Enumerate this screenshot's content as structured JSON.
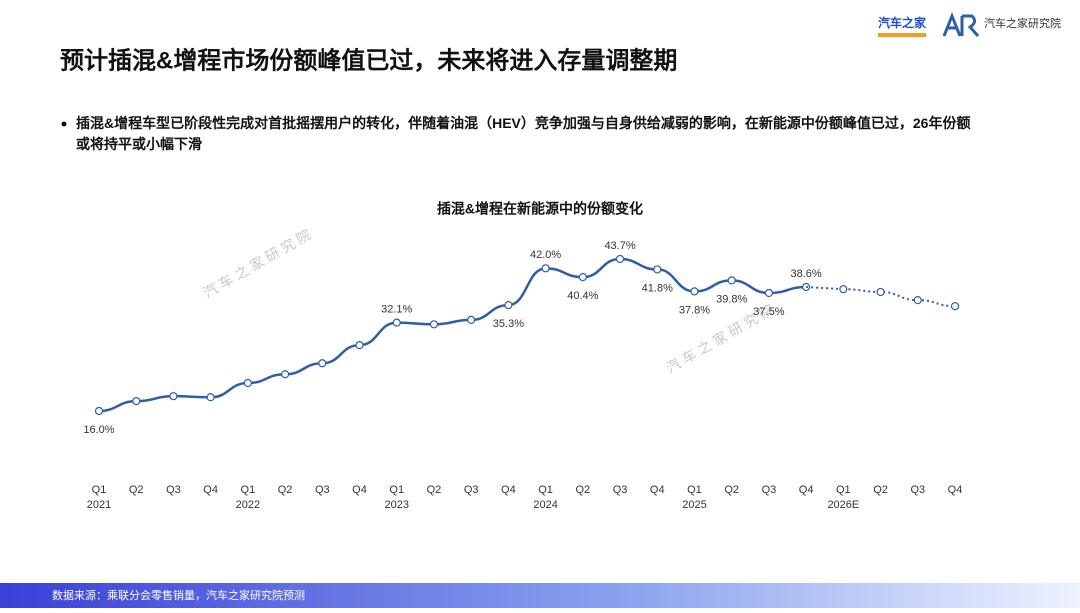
{
  "header": {
    "title": "预计插混&增程市场份额峰值已过，未来将进入存量调整期",
    "logo_brand": "汽车之家",
    "logo_research": "汽车之家研究院"
  },
  "bullet": "插混&增程车型已阶段性完成对首批摇摆用户的转化，伴随着油混（HEV）竞争加强与自身供给减弱的影响，在新能源中份额峰值已过，26年份额或将持平或小幅下滑",
  "watermark": "汽 车 之 家 研 究 院",
  "footer": "数据来源：乘联分会零售销量，汽车之家研究院预测",
  "chart_data": {
    "type": "line",
    "title": "插混&增程在新能源中的份额变化",
    "categories": [
      "Q1",
      "Q2",
      "Q3",
      "Q4",
      "Q1",
      "Q2",
      "Q3",
      "Q4",
      "Q1",
      "Q2",
      "Q3",
      "Q4",
      "Q1",
      "Q2",
      "Q3",
      "Q4",
      "Q1",
      "Q2",
      "Q3",
      "Q4",
      "Q1",
      "Q2",
      "Q3",
      "Q4"
    ],
    "year_labels": [
      "2021",
      null,
      null,
      null,
      "2022",
      null,
      null,
      null,
      "2023",
      null,
      null,
      null,
      "2024",
      null,
      null,
      null,
      "2025",
      null,
      null,
      null,
      "2026E",
      null,
      null,
      null
    ],
    "series": [
      {
        "color": "#2f5da8",
        "line": "solid",
        "values": [
          16.0,
          17.8,
          18.7,
          18.5,
          21.1,
          22.7,
          24.7,
          28.0,
          32.1,
          31.8,
          32.6,
          35.3,
          42.0,
          40.4,
          43.7,
          41.8,
          37.8,
          39.8,
          37.5,
          38.6,
          null,
          null,
          null,
          null
        ],
        "value_labels": [
          "16.0%",
          null,
          null,
          null,
          null,
          null,
          null,
          null,
          "32.1%",
          null,
          null,
          "35.3%",
          "42.0%",
          "40.4%",
          "43.7%",
          "41.8%",
          "37.8%",
          "39.8%",
          "37.5%",
          "38.6%",
          null,
          null,
          null,
          null
        ]
      },
      {
        "color": "#2f5da8",
        "line": "dotted",
        "values": [
          null,
          null,
          null,
          null,
          null,
          null,
          null,
          null,
          null,
          null,
          null,
          null,
          null,
          null,
          null,
          null,
          null,
          null,
          null,
          null,
          38.2,
          37.7,
          36.2,
          35.1
        ]
      }
    ]
  }
}
